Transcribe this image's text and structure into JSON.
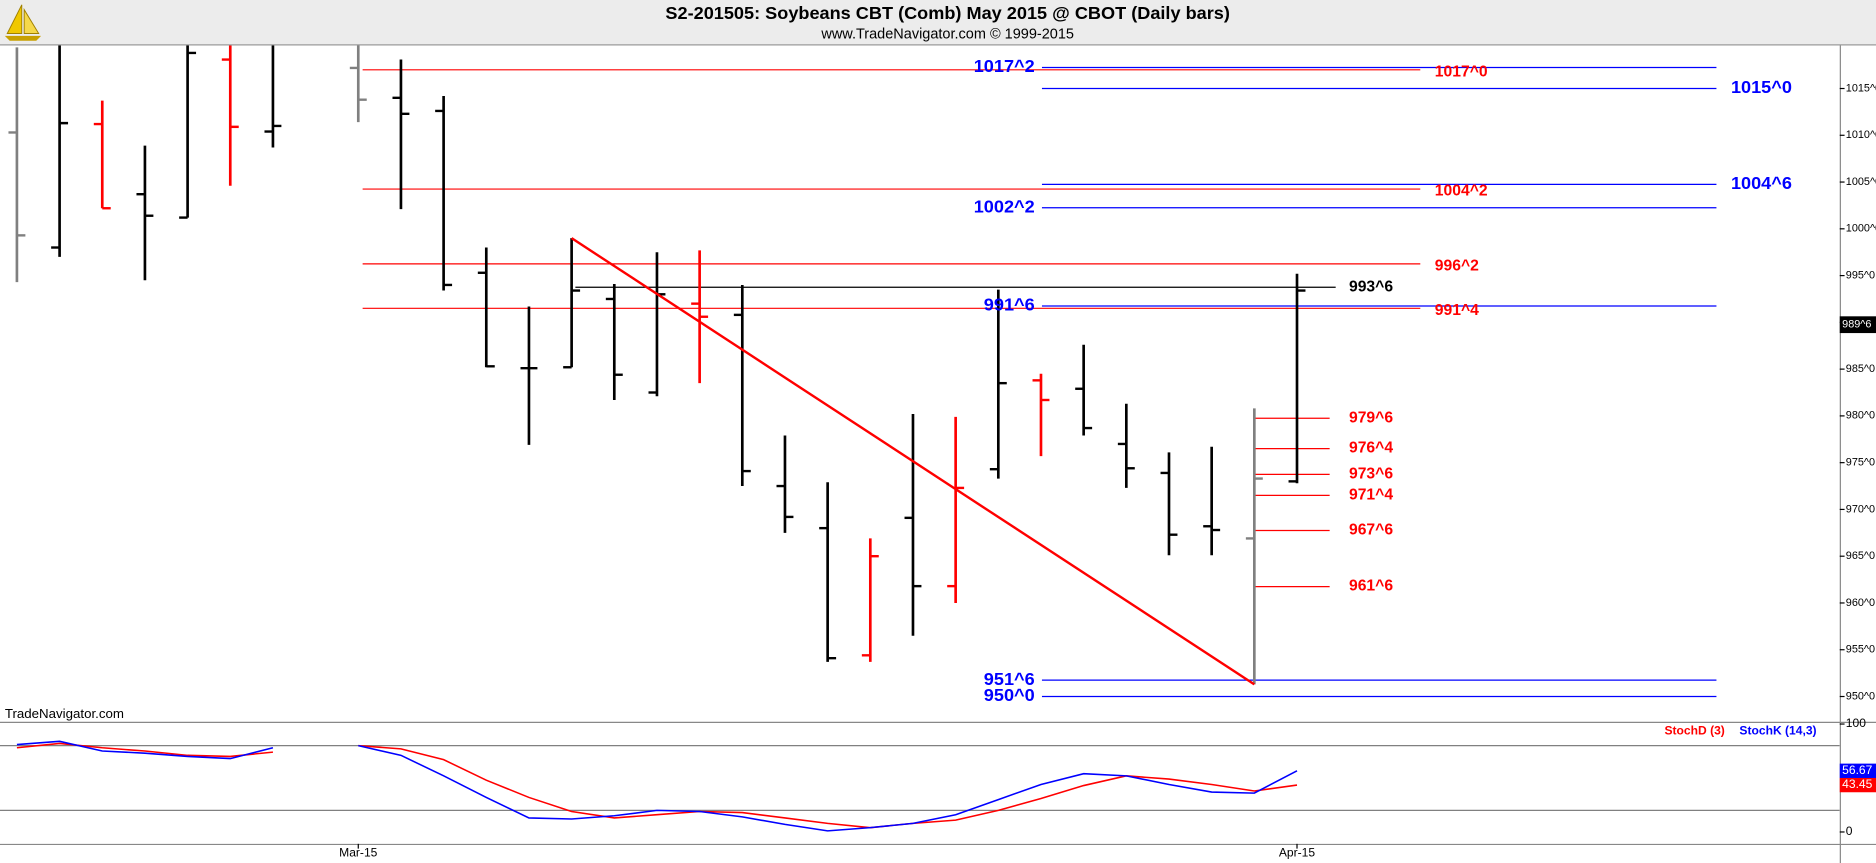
{
  "chart_data": {
    "type": "ohlc",
    "title": "S2-201505:  Soybeans CBT (Comb) May 2015 @ CBOT  (Daily bars)",
    "subtitle": "www.TradeNavigator.com © 1999-2015",
    "source": "TradeNavigator.com",
    "categories": [
      null,
      null,
      null,
      null,
      null,
      null,
      null,
      null,
      "Mar-15",
      null,
      null,
      null,
      null,
      null,
      null,
      null,
      null,
      null,
      null,
      null,
      null,
      null,
      null,
      null,
      null,
      null,
      null,
      null,
      null,
      null,
      "Apr-15"
    ],
    "open": [
      1010.3,
      998.0,
      1011.2,
      1003.7,
      1001.2,
      1018.1,
      1010.4,
      null,
      1017.2,
      1014.0,
      1012.6,
      995.3,
      985.1,
      985.2,
      992.5,
      982.5,
      992.0,
      990.8,
      972.5,
      968.0,
      954.4,
      969.1,
      961.8,
      974.3,
      983.8,
      982.9,
      977.0,
      973.9,
      968.2,
      966.9,
      973.0
    ],
    "high": [
      1019.4,
      1020,
      1013.7,
      1008.9,
      1020,
      1020,
      1020,
      null,
      1020,
      1018.1,
      1014.2,
      998.0,
      991.7,
      999.0,
      994.1,
      997.5,
      997.7,
      994.0,
      977.9,
      972.9,
      966.9,
      980.2,
      979.9,
      993.5,
      984.5,
      987.6,
      981.3,
      976.1,
      976.7,
      980.8,
      995.2
    ],
    "low": [
      994.3,
      997.0,
      1002.2,
      994.5,
      1001.2,
      1004.6,
      1008.7,
      null,
      1011.4,
      1002.1,
      993.4,
      985.2,
      976.9,
      985.2,
      981.7,
      982.1,
      983.5,
      972.5,
      967.5,
      953.7,
      953.7,
      956.5,
      960.0,
      973.3,
      975.7,
      977.9,
      972.3,
      965.1,
      965.1,
      951.3,
      972.8
    ],
    "close": [
      999.3,
      1011.3,
      1002.2,
      1001.4,
      1018.8,
      1010.9,
      1011.0,
      null,
      1013.8,
      1012.3,
      994.0,
      985.3,
      985.1,
      993.4,
      984.4,
      993.0,
      990.6,
      974.1,
      969.2,
      954.1,
      965.0,
      961.8,
      972.3,
      983.5,
      981.7,
      978.7,
      974.4,
      967.3,
      967.8,
      973.3,
      993.4
    ],
    "bar_colors": [
      "#808080",
      "#000000",
      "#ff0000",
      "#000000",
      "#000000",
      "#ff0000",
      "#000000",
      null,
      "#808080",
      "#000000",
      "#000000",
      "#000000",
      "#000000",
      "#000000",
      "#000000",
      "#000000",
      "#ff0000",
      "#000000",
      "#000000",
      "#000000",
      "#ff0000",
      "#000000",
      "#ff0000",
      "#000000",
      "#ff0000",
      "#000000",
      "#000000",
      "#000000",
      "#000000",
      "#808080",
      "#000000"
    ],
    "ylim": [
      947.3,
      1019.6
    ],
    "yticks": [
      {
        "value": 950,
        "label": "950^0"
      },
      {
        "value": 955,
        "label": "955^0"
      },
      {
        "value": 960,
        "label": "960^0"
      },
      {
        "value": 965,
        "label": "965^0"
      },
      {
        "value": 970,
        "label": "970^0"
      },
      {
        "value": 975,
        "label": "975^0"
      },
      {
        "value": 980,
        "label": "980^0"
      },
      {
        "value": 985,
        "label": "985^0"
      },
      {
        "value": 990,
        "label": "990^0"
      },
      {
        "value": 995,
        "label": "995^0"
      },
      {
        "value": 1000,
        "label": "1000^0"
      },
      {
        "value": 1005,
        "label": "1005^0"
      },
      {
        "value": 1010,
        "label": "1010^0"
      },
      {
        "value": 1015,
        "label": "1015^0"
      }
    ],
    "last_price": {
      "value": 989.75,
      "label": "989^6"
    },
    "trendline_color": "#ff0000",
    "level_colors": {
      "blue_left": "#0000ff",
      "blue_right": "#0000ff",
      "red": "#ff0000",
      "black": "#000000",
      "targets": "#ff0000"
    },
    "levels": {
      "blue_left": [
        {
          "value": 1017.25,
          "label": "1017^2"
        },
        {
          "value": 1002.25,
          "label": "1002^2"
        },
        {
          "value": 991.75,
          "label": "991^6"
        },
        {
          "value": 951.75,
          "label": "951^6"
        },
        {
          "value": 950,
          "label": "950^0"
        }
      ],
      "blue_right": [
        {
          "value": 1015,
          "label": "1015^0"
        },
        {
          "value": 1004.75,
          "label": "1004^6"
        }
      ],
      "red": [
        {
          "value": 1017,
          "label": "1017^0"
        },
        {
          "value": 1004.25,
          "label": "1004^2"
        },
        {
          "value": 996.25,
          "label": "996^2"
        },
        {
          "value": 991.5,
          "label": "991^4"
        }
      ],
      "black": [
        {
          "value": 993.75,
          "label": "993^6"
        }
      ],
      "targets": [
        {
          "value": 979.75,
          "label": "979^6"
        },
        {
          "value": 976.5,
          "label": "976^4"
        },
        {
          "value": 973.75,
          "label": "973^6"
        },
        {
          "value": 971.5,
          "label": "971^4"
        },
        {
          "value": 967.75,
          "label": "967^6"
        },
        {
          "value": 961.75,
          "label": "961^6"
        }
      ]
    },
    "indicator": {
      "type": "line",
      "ylim": [
        -11,
        101
      ],
      "yticks": [
        0,
        100
      ],
      "levels": [
        20,
        80
      ],
      "series": [
        {
          "name": "StochD (3)",
          "color": "#ff0000",
          "values": [
            78,
            82,
            78,
            75,
            71,
            70,
            74,
            null,
            80,
            77,
            67,
            48,
            32,
            19,
            13,
            16,
            19,
            18,
            13,
            8,
            4,
            8,
            11,
            20,
            31,
            43,
            52,
            49,
            44,
            38,
            43.45
          ]
        },
        {
          "name": "StochK (14,3)",
          "color": "#0000ff",
          "values": [
            81,
            84,
            75,
            73,
            70,
            68,
            78,
            null,
            80,
            71,
            52,
            32,
            13,
            12,
            15,
            20,
            19,
            14,
            7,
            1,
            4,
            8,
            16,
            30,
            44,
            54,
            52,
            44,
            37,
            36,
            56.67
          ]
        }
      ]
    }
  }
}
